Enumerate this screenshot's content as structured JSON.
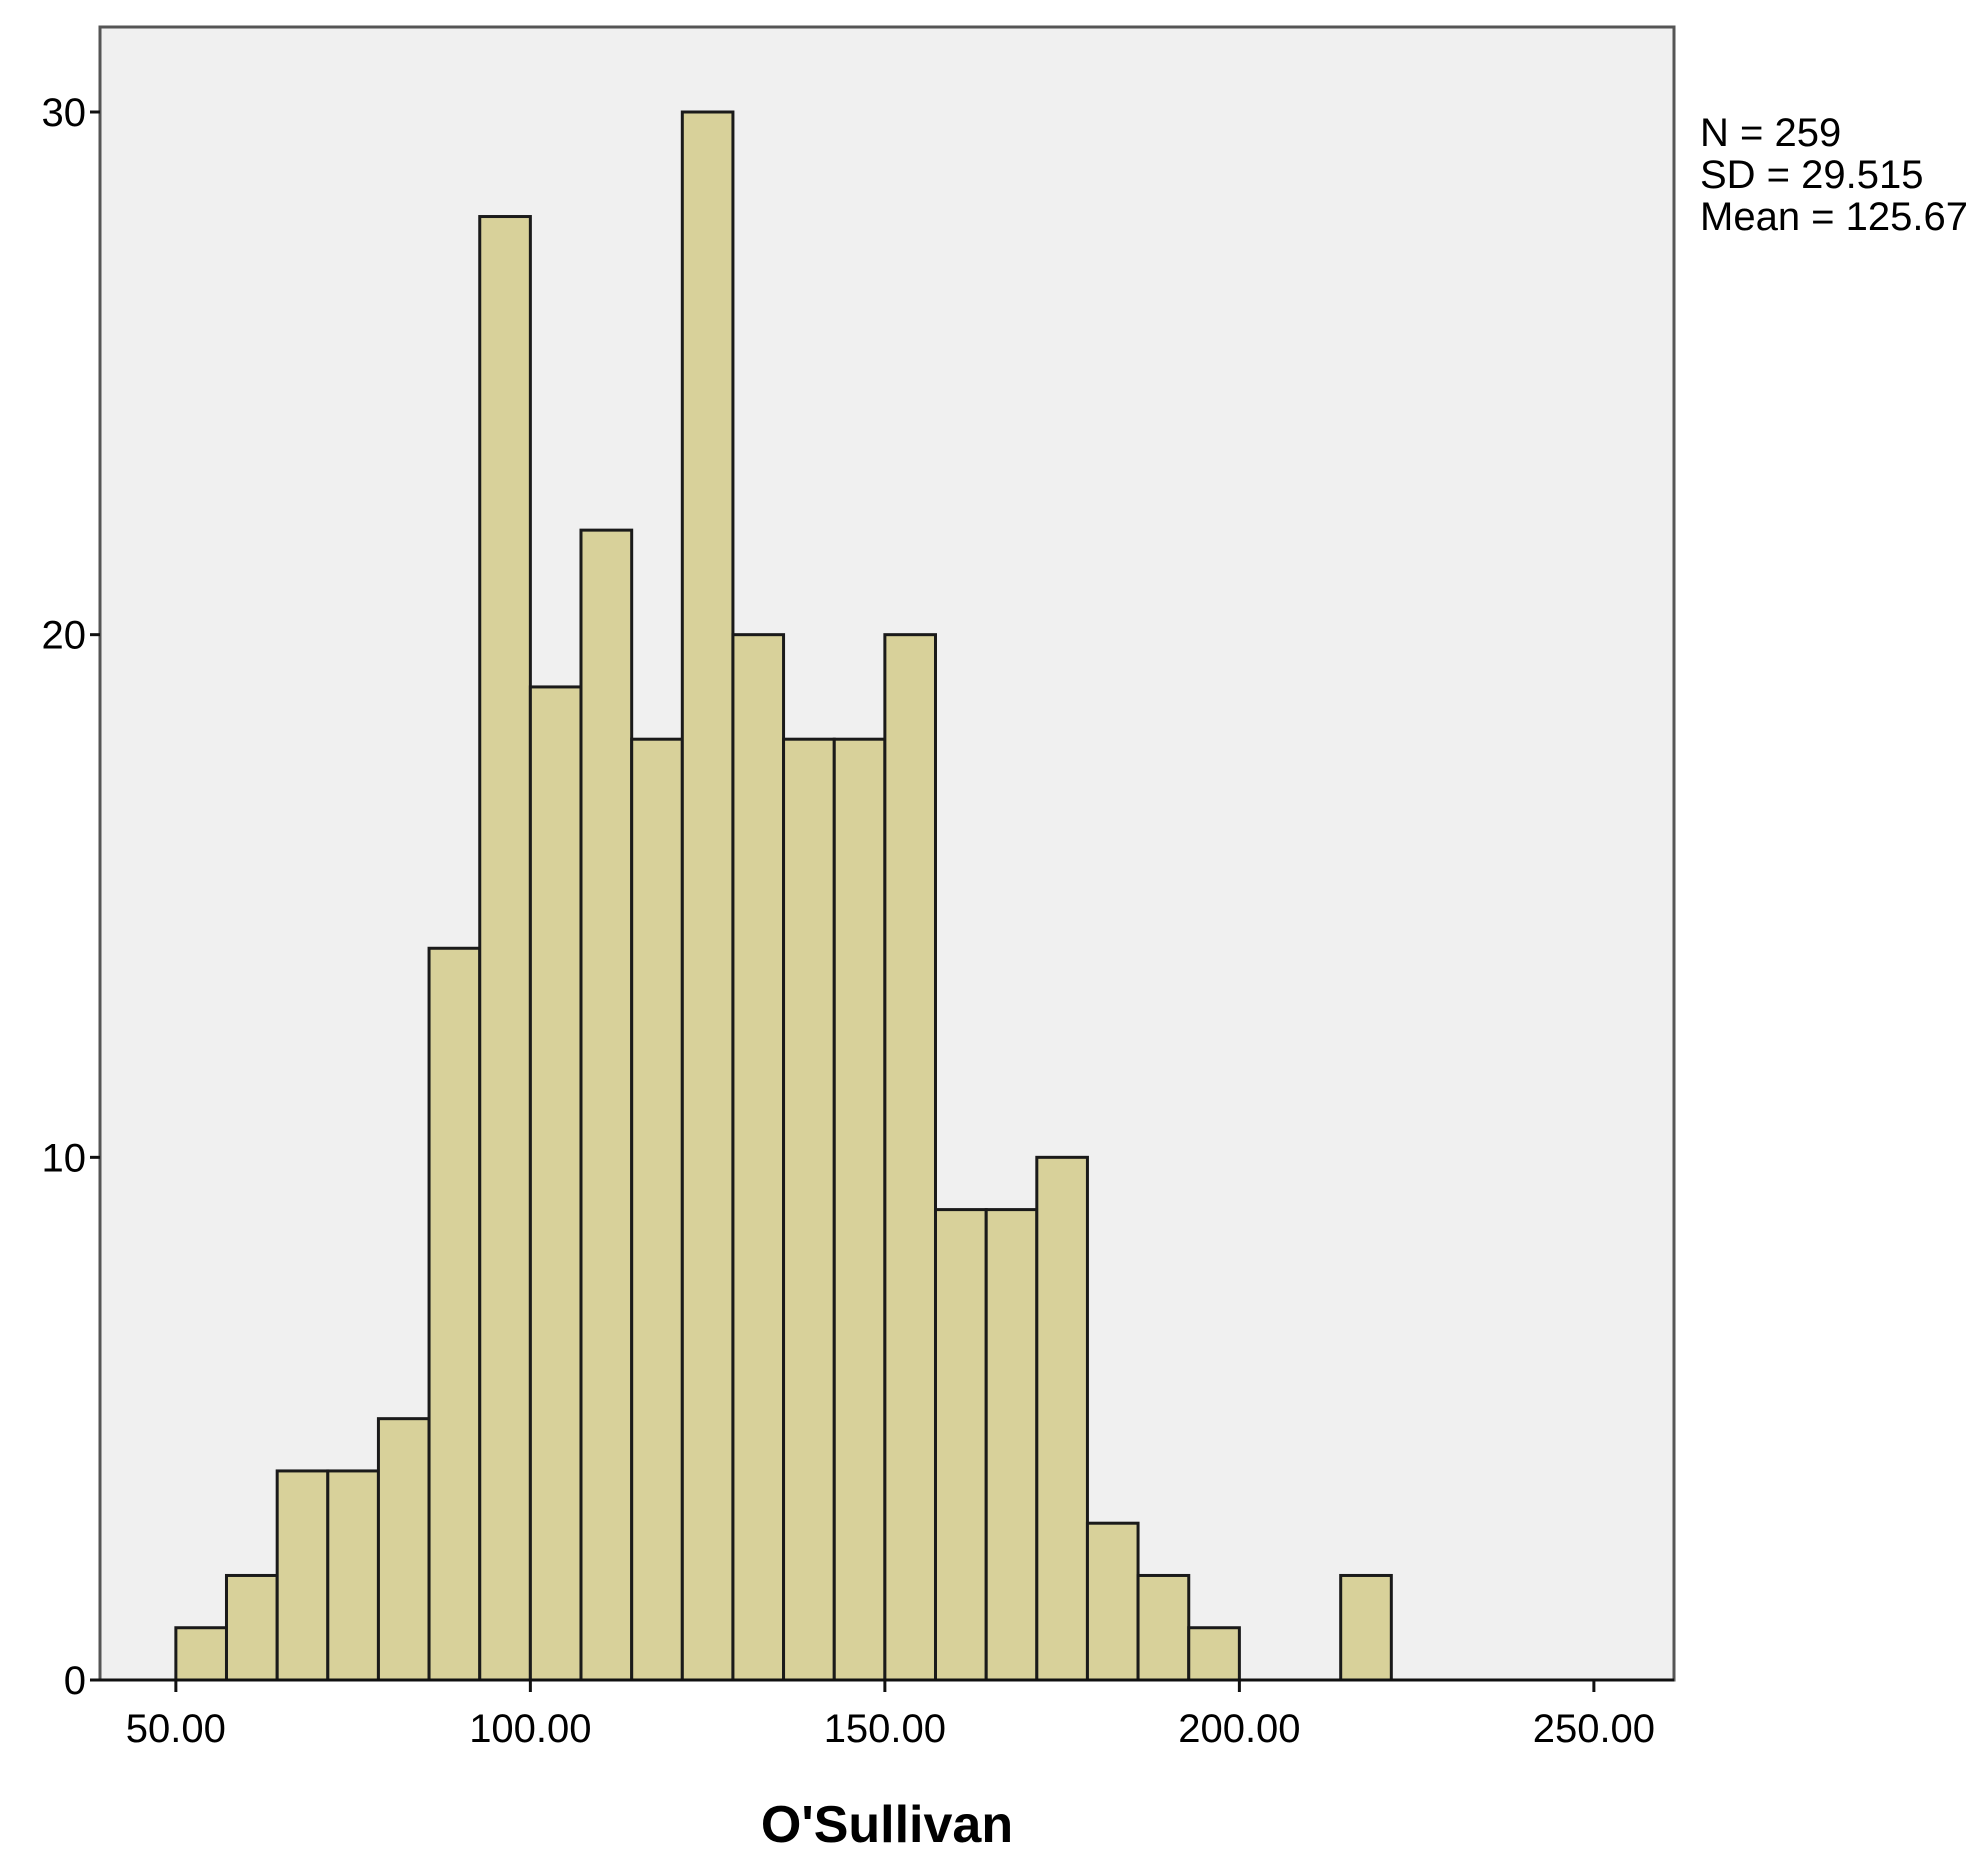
{
  "chart_data": {
    "type": "bar",
    "subtype": "histogram",
    "xlabel": "O'Sullivan",
    "ylabel": "",
    "bin_width": 7.143,
    "bins": [
      {
        "x0": 50.0,
        "x1": 57.14,
        "count": 1
      },
      {
        "x0": 57.14,
        "x1": 64.29,
        "count": 2
      },
      {
        "x0": 64.29,
        "x1": 71.43,
        "count": 4
      },
      {
        "x0": 71.43,
        "x1": 78.57,
        "count": 4
      },
      {
        "x0": 78.57,
        "x1": 85.71,
        "count": 5
      },
      {
        "x0": 85.71,
        "x1": 92.86,
        "count": 14
      },
      {
        "x0": 92.86,
        "x1": 100.0,
        "count": 28
      },
      {
        "x0": 100.0,
        "x1": 107.14,
        "count": 19
      },
      {
        "x0": 107.14,
        "x1": 114.29,
        "count": 22
      },
      {
        "x0": 114.29,
        "x1": 121.43,
        "count": 18
      },
      {
        "x0": 121.43,
        "x1": 128.57,
        "count": 30
      },
      {
        "x0": 128.57,
        "x1": 135.71,
        "count": 20
      },
      {
        "x0": 135.71,
        "x1": 142.86,
        "count": 18
      },
      {
        "x0": 142.86,
        "x1": 150.0,
        "count": 18
      },
      {
        "x0": 150.0,
        "x1": 157.14,
        "count": 20
      },
      {
        "x0": 157.14,
        "x1": 164.29,
        "count": 9
      },
      {
        "x0": 164.29,
        "x1": 171.43,
        "count": 9
      },
      {
        "x0": 171.43,
        "x1": 178.57,
        "count": 10
      },
      {
        "x0": 178.57,
        "x1": 185.71,
        "count": 3
      },
      {
        "x0": 185.71,
        "x1": 192.86,
        "count": 2
      },
      {
        "x0": 192.86,
        "x1": 200.0,
        "count": 1
      },
      {
        "x0": 200.0,
        "x1": 207.14,
        "count": 0
      },
      {
        "x0": 207.14,
        "x1": 214.29,
        "count": 0
      },
      {
        "x0": 214.29,
        "x1": 221.43,
        "count": 2
      }
    ],
    "xlim": [
      39.3,
      261.3
    ],
    "ylim": [
      0,
      30
    ],
    "x_ticks": [
      50,
      100,
      150,
      200,
      250
    ],
    "x_tick_labels": [
      "50.00",
      "100.00",
      "150.00",
      "200.00",
      "250.00"
    ],
    "y_ticks": [
      0,
      10,
      20,
      30
    ],
    "y_tick_labels": [
      "0",
      "10",
      "20",
      "30"
    ],
    "grid": false,
    "colors": {
      "bar_fill": "#d8d19a",
      "bar_stroke": "#1a1a1a",
      "plot_background": "#f0f0f0",
      "frame": "#555555"
    },
    "stats": {
      "n_label": "N = 259",
      "sd_label": "SD = 29.515",
      "mean_label": "Mean = 125.67"
    }
  }
}
